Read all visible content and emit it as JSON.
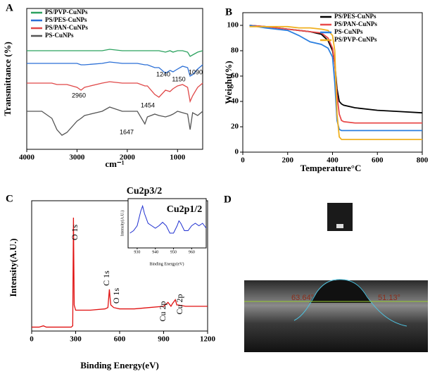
{
  "chart_data": [
    {
      "type": "line",
      "label": "A",
      "xlabel": "cm⁻¹",
      "ylabel": "Transmittance (%)",
      "xlim": [
        4000,
        500
      ],
      "xticks": [
        4000,
        3000,
        2000,
        1000
      ],
      "ylim": [
        0,
        100
      ],
      "legend": "upper left",
      "x": [
        4000,
        3700,
        3500,
        3400,
        3300,
        3200,
        3000,
        2920,
        2850,
        2500,
        2350,
        2100,
        1800,
        1650,
        1600,
        1454,
        1370,
        1240,
        1150,
        1090,
        1000,
        900,
        800,
        750,
        700,
        600,
        500
      ],
      "series": [
        {
          "name": "PS/PVP-CuNPs",
          "color": "#2ca25f",
          "values": [
            70,
            70,
            70,
            70,
            70,
            70,
            70,
            70,
            70,
            70,
            71,
            70,
            70,
            70,
            70,
            70,
            70,
            69,
            70,
            69,
            70,
            70,
            69,
            66,
            67,
            69,
            70
          ]
        },
        {
          "name": "PS/PES-CuNPs",
          "color": "#2b6fd6",
          "values": [
            61,
            61,
            61,
            61,
            61,
            61,
            61,
            60,
            60,
            61,
            62,
            61,
            61,
            60,
            60,
            58,
            58,
            54,
            56,
            55,
            57,
            59,
            58,
            52,
            53,
            57,
            60
          ]
        },
        {
          "name": "PS/PAN-CuNPs",
          "color": "#e04848",
          "values": [
            47,
            47,
            47,
            46,
            46,
            46,
            44,
            42,
            44,
            47,
            48,
            47,
            47,
            45,
            45,
            39,
            37,
            42,
            41,
            43,
            45,
            46,
            44,
            34,
            38,
            44,
            47
          ]
        },
        {
          "name": "PS-CuNPs",
          "color": "#555555",
          "values": [
            27,
            27,
            22,
            14,
            10,
            12,
            20,
            22,
            24,
            27,
            30,
            27,
            27,
            18,
            23,
            25,
            24,
            23,
            24,
            25,
            27,
            26,
            25,
            14,
            26,
            24,
            27
          ]
        }
      ],
      "annotations": [
        "1240",
        "1150",
        "1090",
        "2960",
        "1454",
        "1647"
      ]
    },
    {
      "type": "line",
      "label": "B",
      "xlabel": "Temperature°C",
      "ylabel": "Weight(%)",
      "xlim": [
        0,
        800
      ],
      "xticks": [
        0,
        200,
        400,
        600,
        800
      ],
      "ylim": [
        0,
        110
      ],
      "yticks": [
        0,
        20,
        40,
        60,
        80,
        100
      ],
      "legend": "upper right",
      "x": [
        30,
        100,
        200,
        250,
        300,
        350,
        380,
        400,
        410,
        420,
        430,
        440,
        450,
        500,
        600,
        700,
        800
      ],
      "series": [
        {
          "name": "PS/PES-CuNPs",
          "color": "#000000",
          "values": [
            100,
            99,
            97,
            96,
            95,
            93,
            88,
            80,
            70,
            50,
            40,
            38,
            37,
            35,
            33,
            32,
            31
          ]
        },
        {
          "name": "PS/PAN-CuNPs",
          "color": "#e84a4a",
          "values": [
            100,
            99,
            97,
            96,
            95,
            94,
            90,
            82,
            70,
            45,
            30,
            25,
            24,
            23,
            23,
            23,
            23
          ]
        },
        {
          "name": "PS-CuNPs",
          "color": "#2b7fe0",
          "values": [
            100,
            98,
            96,
            92,
            87,
            85,
            82,
            75,
            55,
            25,
            18,
            17,
            17,
            17,
            17,
            17,
            17
          ]
        },
        {
          "name": "PS/PVP-CuNPs",
          "color": "#f0b020",
          "values": [
            99,
            99,
            99,
            98,
            98,
            97,
            96,
            92,
            80,
            30,
            12,
            10,
            10,
            10,
            10,
            10,
            10
          ]
        }
      ]
    },
    {
      "type": "line",
      "label": "C",
      "xlabel": "Binding Energy(eV)",
      "ylabel": "Intensity(A.U.)",
      "xlim": [
        0,
        1200
      ],
      "xticks": [
        0,
        300,
        600,
        900,
        1200
      ],
      "ylim": [
        0,
        100
      ],
      "x": [
        0,
        50,
        80,
        100,
        200,
        270,
        280,
        285,
        290,
        300,
        400,
        500,
        520,
        530,
        535,
        540,
        560,
        600,
        700,
        800,
        900,
        930,
        950,
        960,
        980,
        990,
        1000,
        1050,
        1100,
        1200
      ],
      "series": [
        {
          "color": "#e01010",
          "values": [
            3,
            3,
            4,
            3,
            3,
            3,
            4,
            87,
            20,
            16,
            16,
            17,
            18,
            32,
            25,
            20,
            18,
            17,
            17,
            18,
            19,
            22,
            19,
            21,
            24,
            20,
            20,
            19,
            19,
            19
          ]
        }
      ],
      "peak_labels": [
        "O 1s",
        "C 1s",
        "O 1s",
        "Cu 2p",
        "Cu 2p"
      ]
    },
    {
      "type": "line",
      "xlabel": "Binding Energy(eV)",
      "ylabel": "Intensity(A.U.)",
      "xlim": [
        925,
        968
      ],
      "xticks": [
        930,
        940,
        950,
        960
      ],
      "ylim": [
        0,
        100
      ],
      "x": [
        926,
        928,
        930,
        932,
        933,
        934,
        936,
        938,
        940,
        942,
        944,
        946,
        948,
        950,
        952,
        953,
        954,
        956,
        958,
        960,
        962,
        964,
        966,
        968
      ],
      "series": [
        {
          "color": "#1f2fd0",
          "values": [
            30,
            35,
            45,
            75,
            85,
            70,
            50,
            45,
            40,
            45,
            52,
            45,
            30,
            30,
            45,
            55,
            50,
            35,
            35,
            45,
            50,
            45,
            50,
            40
          ]
        }
      ],
      "annotations": [
        "Cu2p3/2",
        "Cu2p1/2"
      ]
    }
  ],
  "panel_d": {
    "label": "D",
    "left_angle": "63.64°",
    "right_angle": "51.13°"
  }
}
